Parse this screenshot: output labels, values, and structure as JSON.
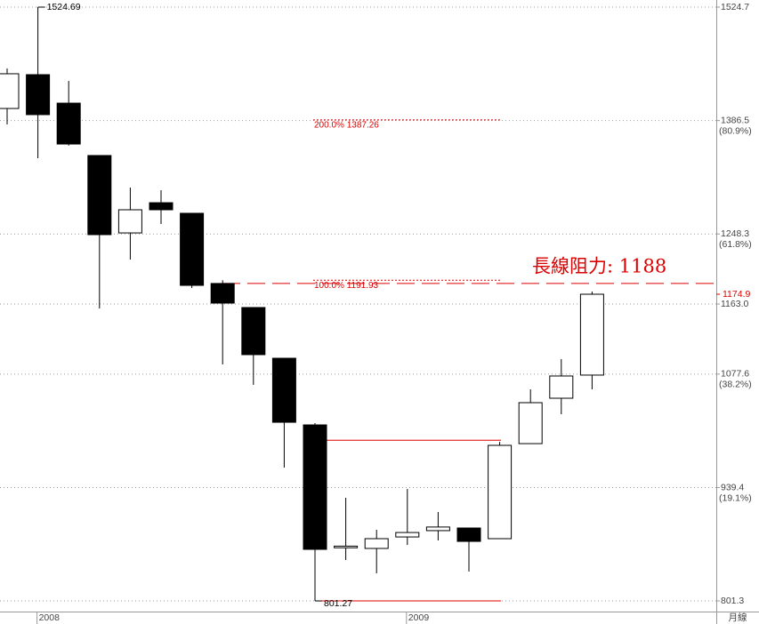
{
  "chart_data": {
    "type": "candlestick",
    "timeframe": "月線",
    "categories": [
      null,
      "2008",
      null,
      null,
      null,
      null,
      null,
      null,
      null,
      null,
      null,
      null,
      null,
      "2009",
      null,
      null,
      null,
      null,
      null,
      null
    ],
    "open": [
      1401.2,
      1442.4,
      1407.7,
      1343.9,
      1249.6,
      1286.4,
      1273.5,
      1188.0,
      1158.7,
      1096.9,
      1015.7,
      866.0,
      865.2,
      879.2,
      886.9,
      890.1,
      877.1,
      992.9,
      1048.2,
      1076.4
    ],
    "high": [
      1450.0,
      1524.69,
      1434.8,
      1344.0,
      1304.9,
      1301.6,
      1274.0,
      1191.93,
      1158.7,
      1096.9,
      1017.9,
      926.9,
      887.9,
      937.7,
      909.6,
      890.1,
      995.1,
      1059.0,
      1095.8,
      1178.2
    ],
    "low": [
      1381.7,
      1340.6,
      1356.0,
      1157.6,
      1217.1,
      1260.5,
      1182.5,
      1089.4,
      1064.5,
      963.7,
      801.27,
      851.1,
      834.9,
      869.5,
      874.9,
      837.0,
      877.1,
      992.9,
      1028.7,
      1059.0
    ],
    "close": [
      1443.5,
      1393.7,
      1357.9,
      1247.5,
      1277.8,
      1277.8,
      1185.7,
      1164.1,
      1101.3,
      1018.9,
      864.1,
      868.0,
      877.1,
      884.6,
      891.3,
      873.8,
      990.8,
      1042.8,
      1075.3,
      1174.9
    ],
    "ylim": [
      801.3,
      1524.7
    ],
    "yticks": [
      1524.7,
      1386.5,
      1248.3,
      {
        "value": 1163,
        "label": "1163.0"
      },
      1077.6,
      939.4,
      801.3
    ],
    "ytick_sublabels": [
      null,
      "(80.9%)",
      "(61.8%)",
      null,
      "(38.2%)",
      "(19.1%)",
      null
    ],
    "grid": true,
    "extreme_labels": [
      {
        "index": 1,
        "value": 1524.69,
        "label": "1524.69"
      },
      {
        "index": 10,
        "value": 801.27,
        "label": "801.27"
      }
    ],
    "fib_levels": [
      {
        "value": 1387.26,
        "label": "200.0% 1387.26"
      },
      {
        "value": 1191.93,
        "label": "100.0% 1191.93"
      }
    ],
    "range_lines": [
      997.0,
      801.27
    ],
    "resistance": {
      "value": 1188,
      "label": "長線阻力: 1188"
    },
    "last_price": {
      "value": 1174.9,
      "label": "1174.9"
    }
  }
}
